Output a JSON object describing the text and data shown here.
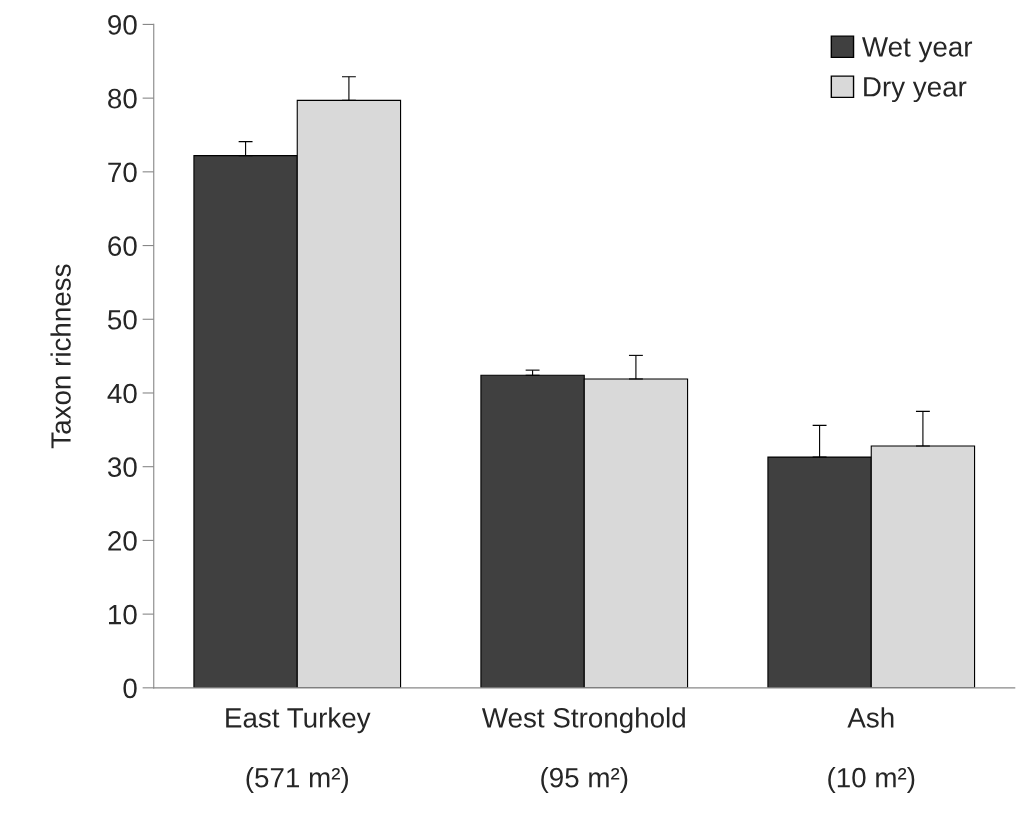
{
  "chart_data": {
    "type": "bar",
    "ylabel": "Taxon richness",
    "categories": [
      "East Turkey\n\n(571 m²)",
      "West Stronghold\n\n(95 m²)",
      "Ash\n\n(10 m²)"
    ],
    "series": [
      {
        "name": "Wet year",
        "color": "#404040",
        "values": [
          72.2,
          42.4,
          31.3
        ],
        "errors": [
          [
            72.2,
            74.1
          ],
          [
            42.4,
            43.1
          ],
          [
            31.3,
            35.6
          ]
        ]
      },
      {
        "name": "Dry year",
        "color": "#d9d9d9",
        "values": [
          79.7,
          41.9,
          32.8
        ],
        "errors": [
          [
            79.7,
            82.9
          ],
          [
            41.9,
            45.1
          ],
          [
            32.8,
            37.5
          ]
        ]
      }
    ],
    "ylim": [
      0,
      90
    ],
    "yticks": [
      0,
      10,
      20,
      30,
      40,
      50,
      60,
      70,
      80,
      90
    ],
    "grid": false,
    "legend": "top right"
  }
}
